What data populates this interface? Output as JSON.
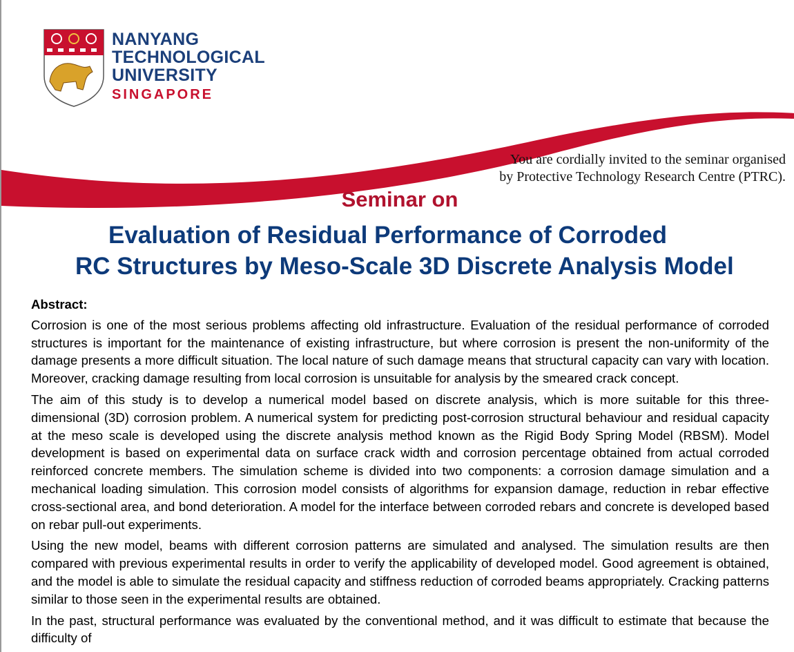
{
  "logo": {
    "lines": [
      "NANYANG",
      "TECHNOLOGICAL",
      "UNIVERSITY"
    ],
    "country": "SINGAPORE"
  },
  "invitation": [
    "You are cordially invited to the seminar organised",
    "by Protective Technology Research Centre (PTRC)."
  ],
  "seminar_label": "Seminar on",
  "title": [
    "Evaluation of Residual Performance of Corroded",
    "RC Structures by Meso-Scale 3D Discrete Analysis Model"
  ],
  "abstract": {
    "heading": "Abstract:",
    "paragraphs": [
      "Corrosion is one of the most serious problems affecting old infrastructure. Evaluation of the residual performance of corroded structures is important for the maintenance of existing infrastructure, but where corrosion is present the non-uniformity of the damage presents a more difficult situation. The local nature of such damage means that structural capacity can vary with location. Moreover, cracking damage resulting from local corrosion is unsuitable for analysis by the smeared crack concept.",
      "The aim of this study is to develop a numerical model based on discrete analysis, which is more suitable for this three-dimensional (3D) corrosion problem. A numerical system for predicting post-corrosion structural behaviour and residual capacity at the meso scale is developed using the discrete analysis method known as the Rigid Body Spring Model (RBSM). Model development is based on experimental data on surface crack width and corrosion percentage obtained from actual corroded reinforced concrete members. The simulation scheme is divided into two components: a corrosion damage simulation and a mechanical loading simulation. This corrosion model consists of algorithms for expansion damage, reduction in rebar effective cross-sectional area, and bond deterioration. A model for the interface between corroded rebars and concrete is developed based on rebar pull-out experiments.",
      "Using the new model, beams with different corrosion patterns are simulated and analysed. The simulation results are then compared with previous experimental results in order to verify the applicability of developed model. Good agreement is obtained, and the model is able to simulate the residual capacity and stiffness reduction of corroded beams appropriately. Cracking patterns similar to those seen in the experimental results are obtained.",
      "In the past, structural performance was evaluated by the conventional method, and it was difficult to estimate that because the difficulty of"
    ]
  }
}
